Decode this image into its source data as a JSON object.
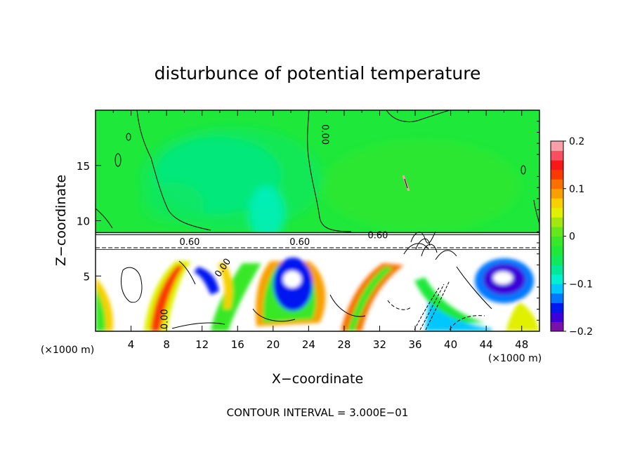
{
  "chart_data": {
    "type": "heatmap",
    "title": "disturbunce of potential temperature",
    "xlabel": "X−coordinate",
    "ylabel": "Z−coordinate",
    "x_unit": "(×1000 m)",
    "x_unit_right": "(×1000 m)",
    "xlim": [
      0,
      50
    ],
    "ylim": [
      0,
      20
    ],
    "xticks": [
      4,
      8,
      12,
      16,
      20,
      24,
      28,
      32,
      36,
      40,
      44,
      48
    ],
    "yticks": [
      5,
      10,
      15
    ],
    "grid": false,
    "footer": "CONTOUR INTERVAL = 3.000E−01",
    "colorbar": {
      "range": [
        -0.2,
        0.2
      ],
      "tick_values": [
        0.2,
        0.1,
        0,
        -0.1,
        -0.2
      ],
      "tick_labels": [
        "0.2",
        "0.1",
        "0",
        "−0.1",
        "−0.2"
      ],
      "colors": [
        "#7a10a8",
        "#3c00d8",
        "#0018f0",
        "#0078ff",
        "#00c8ff",
        "#00f0d0",
        "#00e898",
        "#12e85c",
        "#1ee83a",
        "#38e828",
        "#64e81c",
        "#a2e810",
        "#e0f000",
        "#f8d000",
        "#f8a000",
        "#f87000",
        "#f83a00",
        "#f81818",
        "#f85060",
        "#f8a0a8"
      ]
    },
    "contour_labels": [
      {
        "text": "0.00",
        "x": 25.5,
        "z": 17.8,
        "rotate": 90
      },
      {
        "text": "0.60",
        "x": 31.8,
        "z": 8.4,
        "rotate": 0
      },
      {
        "text": "0.60",
        "x": 10.6,
        "z": 7.8,
        "rotate": 0
      },
      {
        "text": "0.60",
        "x": 23.0,
        "z": 7.8,
        "rotate": 0
      },
      {
        "text": "0.00",
        "x": 8.1,
        "z": 1.1,
        "rotate": -90
      },
      {
        "text": "0.00",
        "x": 14.6,
        "z": 5.6,
        "rotate": -55
      }
    ],
    "interpretation": {
      "upper_layer": {
        "z_range": [
          8.8,
          20
        ],
        "value_approx": 0.03
      },
      "boundary_z": 8.8,
      "lower_layer": {
        "z_range": [
          0,
          7.5
        ]
      },
      "warm_cells_x": [
        7,
        10.5,
        17.5,
        25,
        33
      ],
      "cold_cells_x": [
        3,
        13.5,
        21.5,
        29,
        46
      ],
      "cold_cell_centers": [
        {
          "x": 21.8,
          "z": 4.6
        },
        {
          "x": 45.8,
          "z": 4.9
        }
      ]
    }
  }
}
